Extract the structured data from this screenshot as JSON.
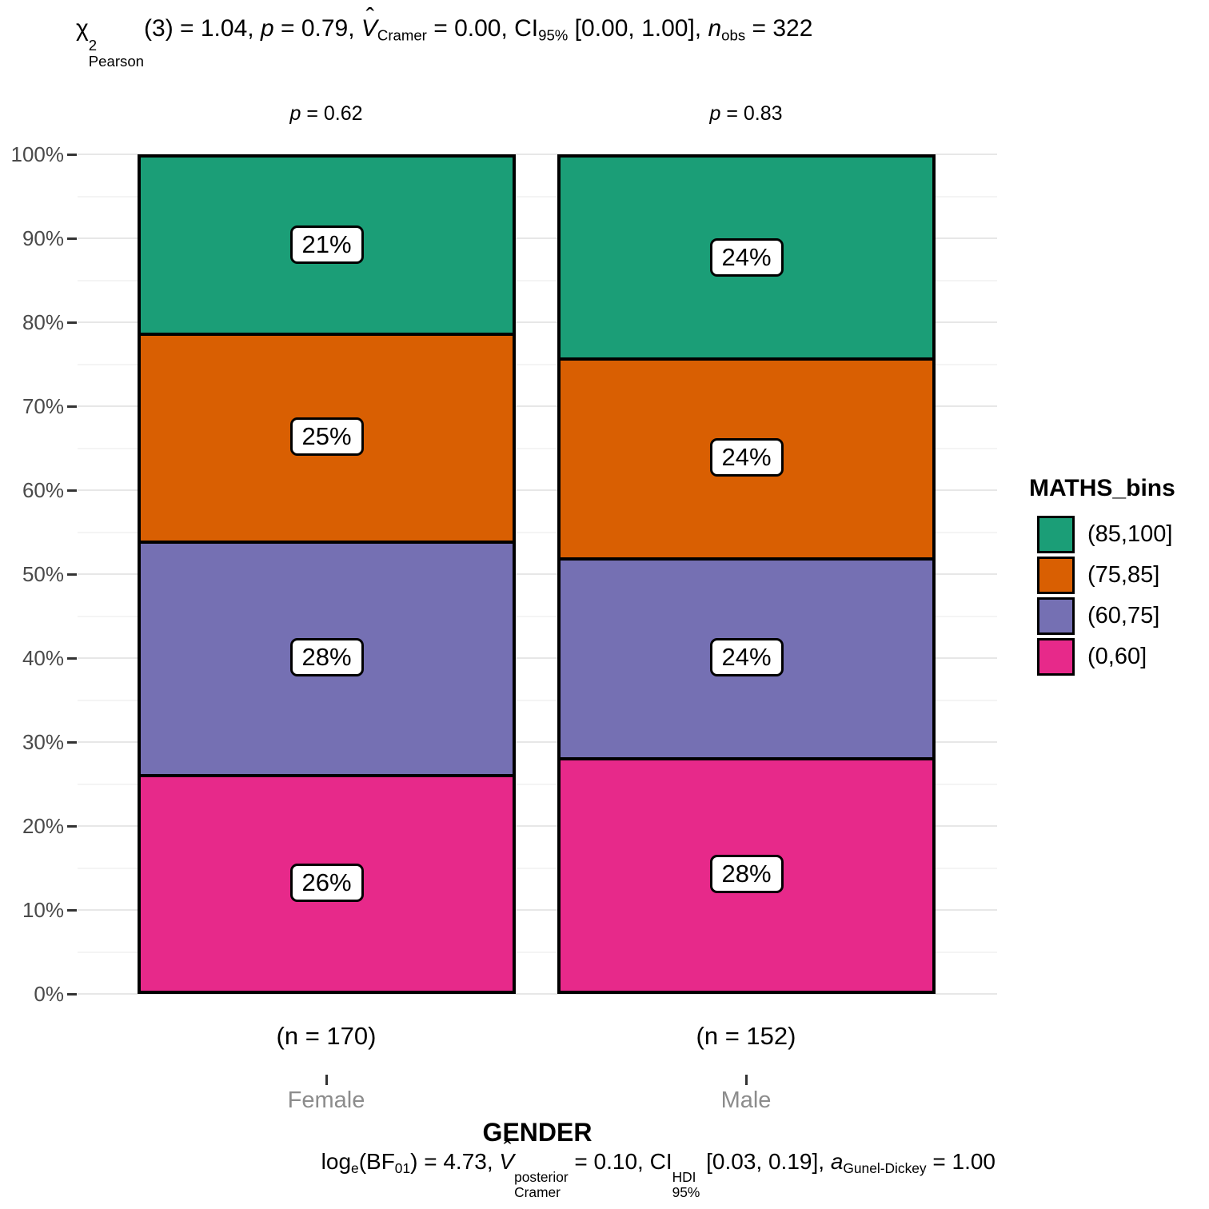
{
  "header": {
    "stats_title": [
      {
        "t": "χ",
        "stack": {
          "sup": "2",
          "sub": "Pearson"
        }
      },
      {
        "t": "(3) = 1.04, "
      },
      {
        "t": "p",
        "i": true
      },
      {
        "t": " = 0.79, "
      },
      {
        "t": "V",
        "i": true,
        "hat": true
      },
      {
        "sub": "Cramer"
      },
      {
        "t": " = 0.00, CI"
      },
      {
        "sub": "95%"
      },
      {
        "t": " [0.00, 1.00], "
      },
      {
        "t": "n",
        "i": true
      },
      {
        "sub": "obs"
      },
      {
        "t": " = 322"
      }
    ],
    "stats_title_plain": "chi2_Pearson(3) = 1.04, p = 0.79, V_Cramer = 0.00, CI_95% [0.00, 1.00], n_obs = 322"
  },
  "facets": {
    "p_labels": [
      [
        {
          "t": "p",
          "i": true
        },
        {
          "t": " = 0.62"
        }
      ],
      [
        {
          "t": "p",
          "i": true
        },
        {
          "t": " = 0.83"
        }
      ]
    ]
  },
  "caption": {
    "segments": [
      {
        "t": "log"
      },
      {
        "sub": "e"
      },
      {
        "t": "(BF"
      },
      {
        "sub": "01"
      },
      {
        "t": ") = 4.73, "
      },
      {
        "t": "V",
        "i": true,
        "hat": true
      },
      {
        "stack": {
          "sup": "posterior",
          "sub": "Cramer"
        }
      },
      {
        "t": " = 0.10, CI"
      },
      {
        "stack": {
          "sup": "HDI",
          "sub": "95%"
        }
      },
      {
        "t": " [0.03, 0.19], "
      },
      {
        "t": "a",
        "i": true
      },
      {
        "sub": "Gunel-Dickey"
      },
      {
        "t": " = 1.00"
      }
    ],
    "plain": "log_e(BF_01) = 4.73, V_Cramer^posterior = 0.10, CI_95%^HDI [0.03, 0.19], a_Gunel-Dickey = 1.00"
  },
  "chart_data": {
    "type": "bar",
    "stacked": true,
    "percent_scale": true,
    "categories": [
      "Female",
      "Male"
    ],
    "series": [
      {
        "name": "(85,100]",
        "color": "#1B9E77",
        "values": [
          21,
          24
        ]
      },
      {
        "name": "(75,85]",
        "color": "#D95F02",
        "values": [
          25,
          24
        ]
      },
      {
        "name": "(60,75]",
        "color": "#7570B3",
        "values": [
          28,
          24
        ]
      },
      {
        "name": "(0,60]",
        "color": "#E7298A",
        "values": [
          26,
          28
        ]
      }
    ],
    "count_labels": [
      "(n = 170)",
      "(n = 152)"
    ],
    "pair_pvalues": [
      "p = 0.62",
      "p = 0.83"
    ],
    "xlabel": "GENDER",
    "legend_title": "MATHS_bins",
    "ylim": [
      0,
      100
    ],
    "yticks": [
      "0%",
      "10%",
      "20%",
      "30%",
      "40%",
      "50%",
      "60%",
      "70%",
      "80%",
      "90%",
      "100%"
    ],
    "grid": "horizontal major + minor",
    "legend_position": "right",
    "colors": {
      "axis_text": "#4a4a4a",
      "category_text": "#8c8c8c",
      "tick": "#333333",
      "grid_major": "#e7e7e7",
      "grid_minor": "#f4f4f4",
      "bar_border": "#000000",
      "background": "#ffffff"
    }
  }
}
